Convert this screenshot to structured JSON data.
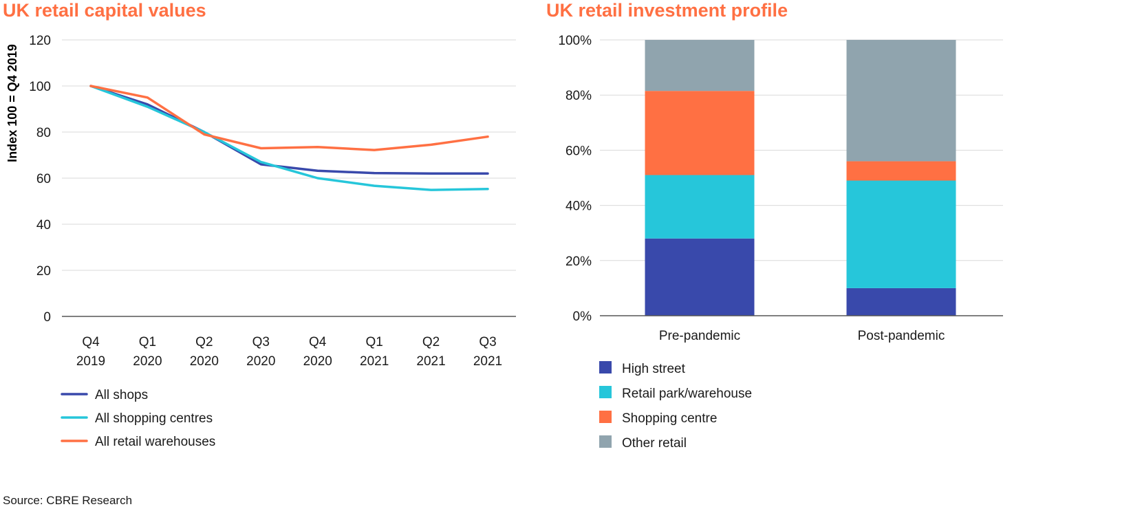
{
  "chart_data": [
    {
      "type": "line",
      "title": "UK retail capital values",
      "ylabel": "Index 100 = Q4 2019",
      "xlabel": "",
      "ylim": [
        0,
        120
      ],
      "yticks": [
        0,
        20,
        40,
        60,
        80,
        100,
        120
      ],
      "grid": true,
      "legend": "bottom",
      "x": [
        [
          "Q4",
          "2019"
        ],
        [
          "Q1",
          "2020"
        ],
        [
          "Q2",
          "2020"
        ],
        [
          "Q3",
          "2020"
        ],
        [
          "Q4",
          "2020"
        ],
        [
          "Q1",
          "2021"
        ],
        [
          "Q2",
          "2021"
        ],
        [
          "Q3",
          "2021"
        ]
      ],
      "series": [
        {
          "name": "All shops",
          "color": "#3949ab",
          "values": [
            100,
            92,
            80,
            66,
            63.2,
            62.2,
            62,
            62
          ]
        },
        {
          "name": "All shopping centres",
          "color": "#26c6da",
          "values": [
            100,
            91,
            80,
            67,
            60,
            56.7,
            54.9,
            55.3
          ]
        },
        {
          "name": "All retail warehouses",
          "color": "#ff7043",
          "values": [
            100,
            95,
            79,
            73,
            73.5,
            72.2,
            74.5,
            78
          ]
        }
      ]
    },
    {
      "type": "bar",
      "stacked": true,
      "title": "UK retail investment profile",
      "xlabel": "",
      "ylabel": "",
      "ylim": [
        0,
        100
      ],
      "yticks": [
        "0%",
        "20%",
        "40%",
        "60%",
        "80%",
        "100%"
      ],
      "grid": true,
      "legend": "bottom",
      "categories": [
        "Pre-pandemic",
        "Post-pandemic"
      ],
      "series": [
        {
          "name": "High street",
          "color": "#3949ab",
          "values": [
            28,
            10
          ]
        },
        {
          "name": "Retail park/warehouse",
          "color": "#26c6da",
          "values": [
            23,
            39
          ]
        },
        {
          "name": "Shopping centre",
          "color": "#ff7043",
          "values": [
            30.5,
            7
          ]
        },
        {
          "name": "Other retail",
          "color": "#90a4ae",
          "values": [
            18.5,
            44
          ]
        }
      ]
    }
  ],
  "source": "Source: CBRE Research"
}
